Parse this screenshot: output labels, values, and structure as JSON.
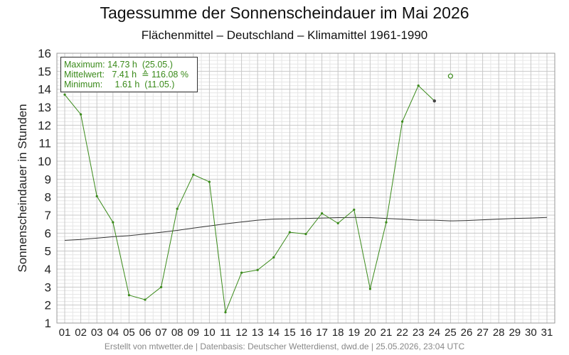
{
  "title": "Tagessumme der Sonnenscheindauer im Mai 2026",
  "subtitle": "Flächenmittel – Deutschland – Klimamittel 1961-1990",
  "footer": "Erstellt von mtwetter.de | Datenbasis: Deutscher Wetterdienst, dwd.de | 25.05.2026, 23:04 UTC",
  "legend": {
    "max_label": "Maximum:",
    "max_value": "14.73 h",
    "max_date": "(25.05.)",
    "mean_label": "Mittelwert:",
    "mean_value": "7.41 h",
    "mean_pct": "≙ 116.08 %",
    "min_label": "Minimum:",
    "min_value": "1.61 h",
    "min_date": "(11.05.)"
  },
  "colors": {
    "actual": "#3a8a1a",
    "climate": "#333333",
    "grid_major": "#c8c8c8",
    "grid_minor": "#e6e6e6"
  },
  "chart_data": {
    "type": "line",
    "title": "Tagessumme der Sonnenscheindauer im Mai 2026",
    "ylabel": "Sonnenscheindauer in Stunden",
    "xlabel": "",
    "ylim": [
      1,
      16
    ],
    "categories": [
      "01",
      "02",
      "03",
      "04",
      "05",
      "06",
      "07",
      "08",
      "09",
      "10",
      "11",
      "12",
      "13",
      "14",
      "15",
      "16",
      "17",
      "18",
      "19",
      "20",
      "21",
      "22",
      "23",
      "24",
      "25",
      "26",
      "27",
      "28",
      "29",
      "30",
      "31"
    ],
    "yticks": [
      "1",
      "2",
      "3",
      "4",
      "5",
      "6",
      "7",
      "8",
      "9",
      "10",
      "11",
      "12",
      "13",
      "14",
      "15",
      "16"
    ],
    "grid": true,
    "legend_position": "top-left",
    "series": [
      {
        "values": [
          13.7,
          12.6,
          8.05,
          6.6,
          2.55,
          2.3,
          3.0,
          7.35,
          9.25,
          8.85,
          1.6,
          3.8,
          3.95,
          4.65,
          6.05,
          5.95,
          7.1,
          6.55,
          7.3,
          2.9,
          6.6,
          12.2,
          14.2,
          13.35,
          null,
          null,
          null,
          null,
          null,
          null,
          null
        ]
      },
      {
        "values": [
          null,
          null,
          null,
          null,
          null,
          null,
          null,
          null,
          null,
          null,
          null,
          null,
          null,
          null,
          null,
          null,
          null,
          null,
          null,
          null,
          null,
          null,
          null,
          null,
          14.73,
          null,
          null,
          null,
          null,
          null,
          null
        ]
      },
      {
        "values": [
          5.6,
          5.65,
          5.72,
          5.8,
          5.86,
          5.95,
          6.05,
          6.15,
          6.28,
          6.4,
          6.52,
          6.62,
          6.72,
          6.78,
          6.8,
          6.82,
          6.84,
          6.86,
          6.87,
          6.86,
          6.82,
          6.77,
          6.72,
          6.72,
          6.68,
          6.7,
          6.74,
          6.78,
          6.82,
          6.84,
          6.87
        ]
      }
    ]
  }
}
